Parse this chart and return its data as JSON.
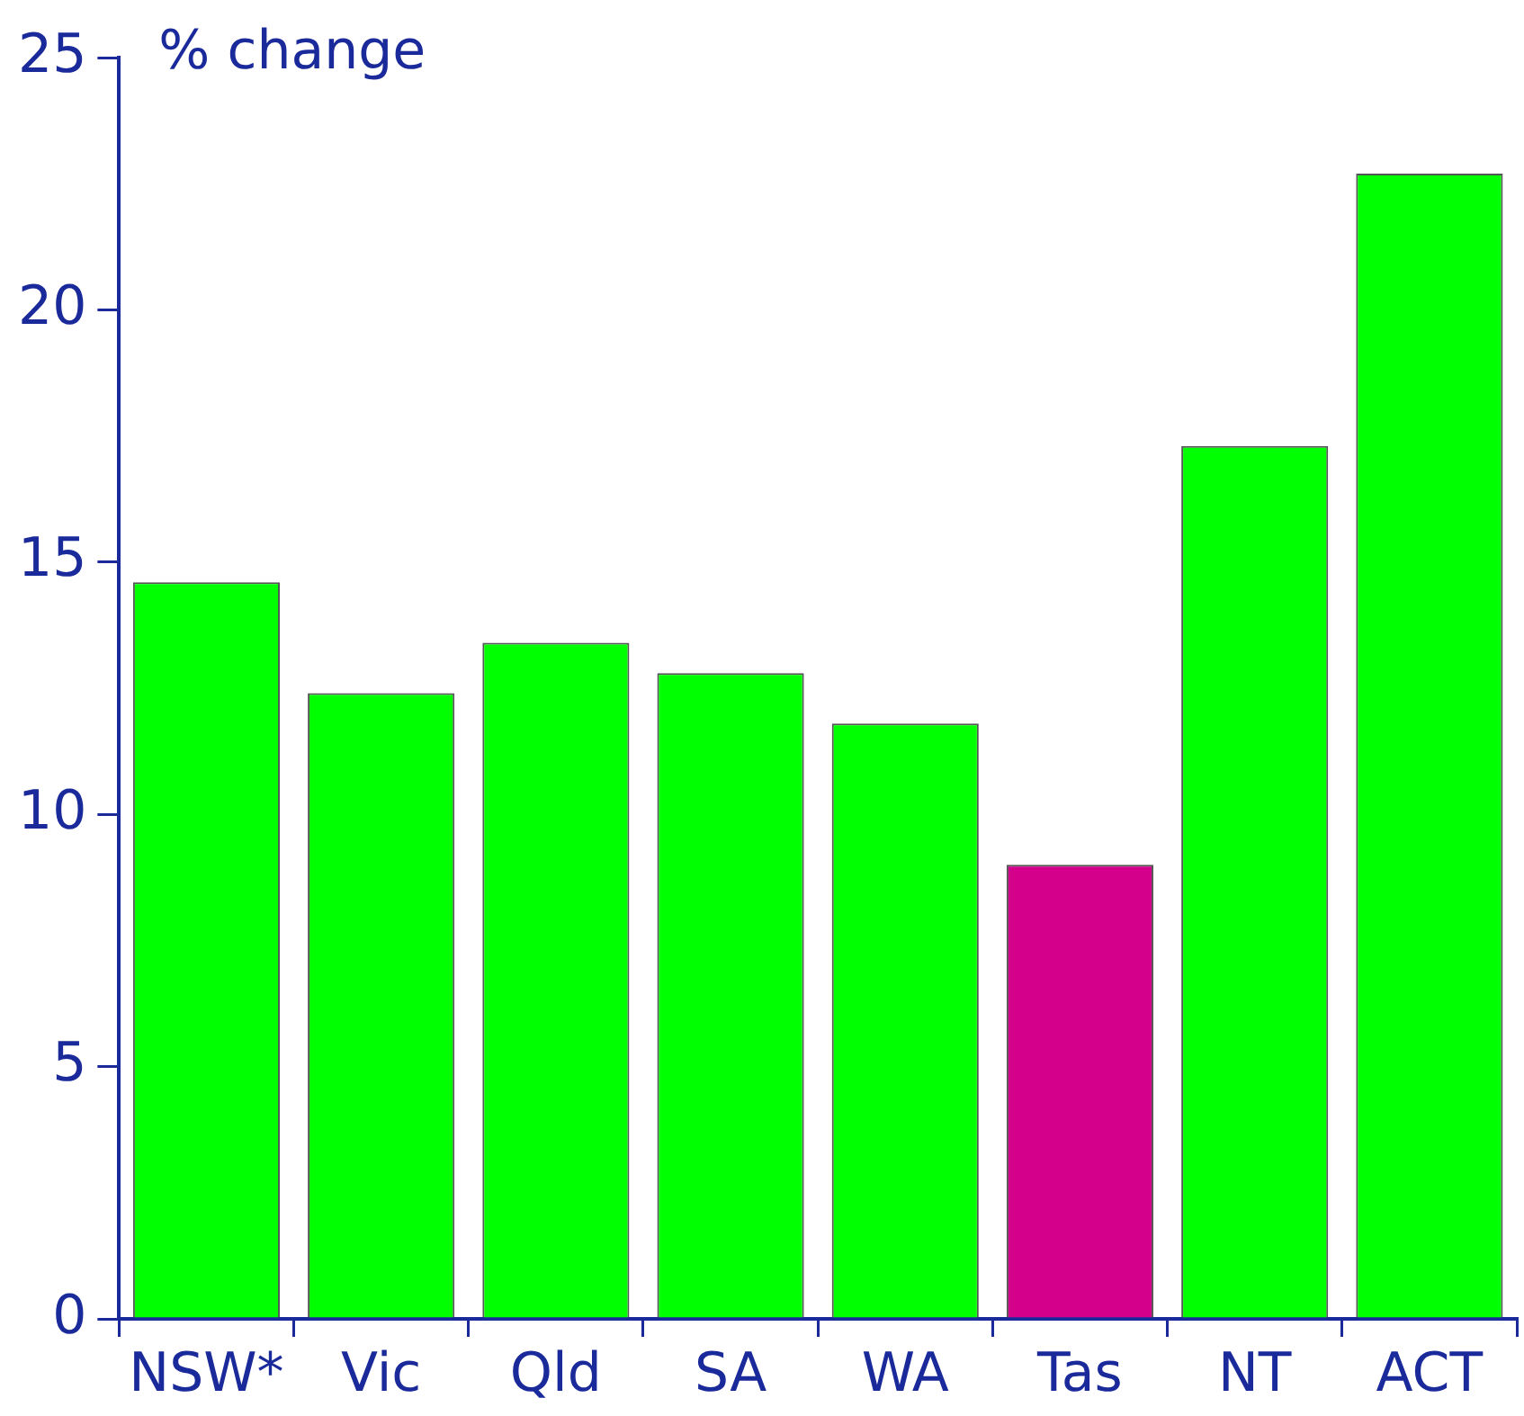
{
  "chart_data": {
    "type": "bar",
    "ylabel": "% change",
    "categories": [
      "NSW*",
      "Vic",
      "Qld",
      "SA",
      "WA",
      "Tas",
      "NT",
      "ACT"
    ],
    "values": [
      14.6,
      12.4,
      13.4,
      12.8,
      11.8,
      9.0,
      17.3,
      22.7
    ],
    "colors": [
      "#00ff00",
      "#00ff00",
      "#00ff00",
      "#00ff00",
      "#00ff00",
      "#d4008c",
      "#00ff00",
      "#00ff00"
    ],
    "ylim": [
      0,
      25
    ],
    "yticks": [
      0,
      5,
      10,
      15,
      20,
      25
    ],
    "grid": false,
    "legend": false
  }
}
